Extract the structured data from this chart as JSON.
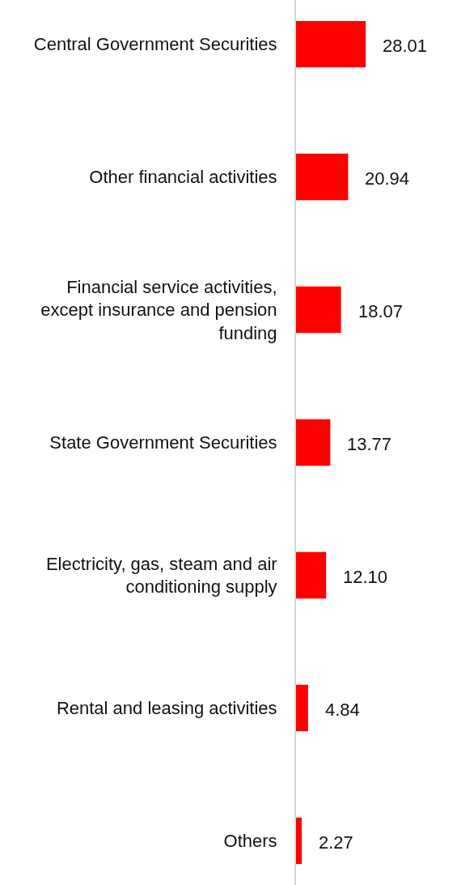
{
  "chart_data": {
    "type": "bar",
    "orientation": "horizontal",
    "categories": [
      "Central Government Securities",
      "Other financial activities",
      "Financial service activities, except insurance and pension funding",
      "State Government Securities",
      "Electricity, gas, steam and air conditioning supply",
      "Rental and leasing activities",
      "Others"
    ],
    "values": [
      28.01,
      20.94,
      18.07,
      13.77,
      12.1,
      4.84,
      2.27
    ],
    "value_labels": [
      "28.01",
      "20.94",
      "18.07",
      "13.77",
      "12.10",
      "4.84",
      "2.27"
    ],
    "color": "#ff0000",
    "tick_labels": "y"
  }
}
